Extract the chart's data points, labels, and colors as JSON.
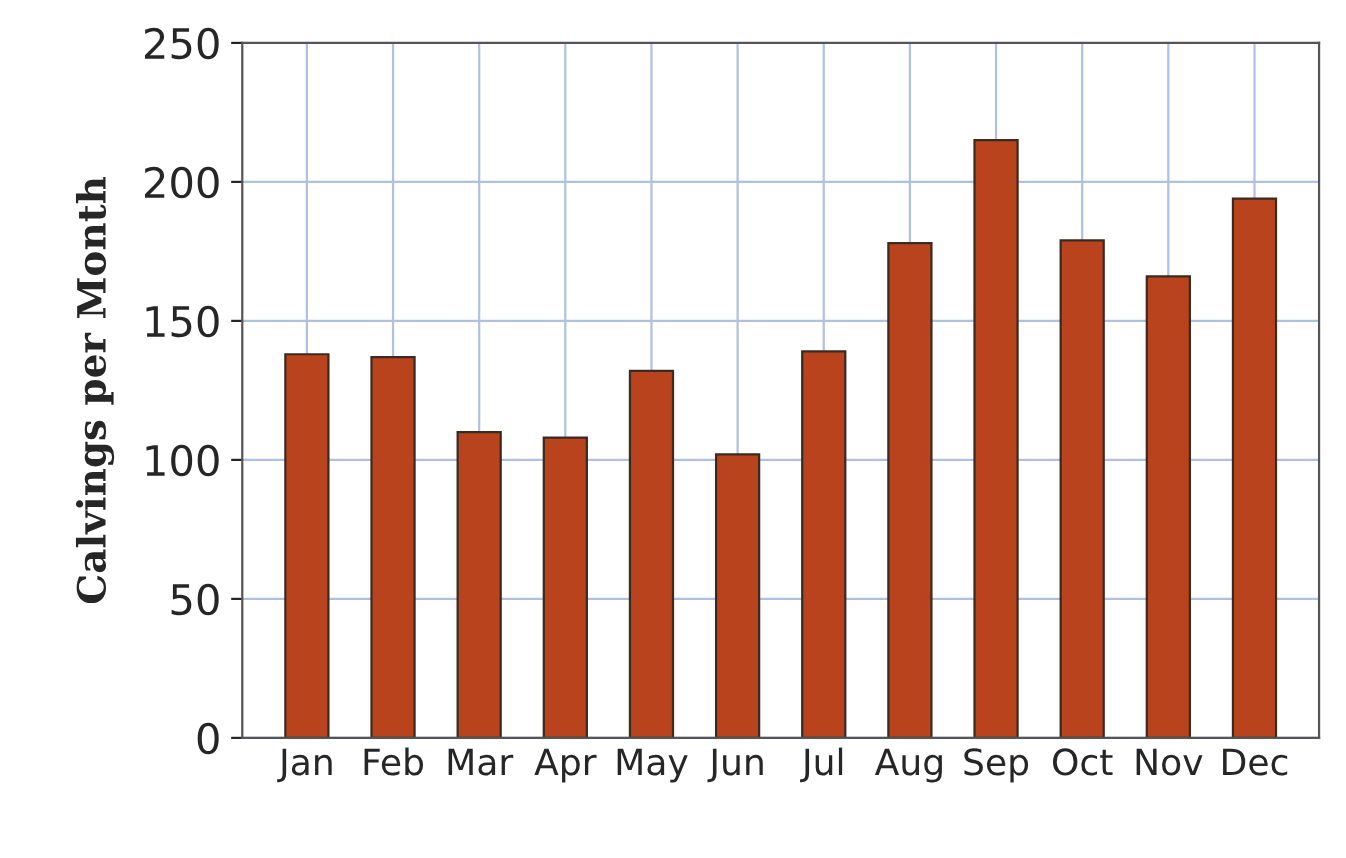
{
  "chart_data": {
    "type": "bar",
    "ylabel": "Calvings per Month",
    "categories": [
      "Jan",
      "Feb",
      "Mar",
      "Apr",
      "May",
      "Jun",
      "Jul",
      "Aug",
      "Sep",
      "Oct",
      "Nov",
      "Dec"
    ],
    "values": [
      138,
      137,
      110,
      108,
      132,
      102,
      139,
      178,
      215,
      179,
      166,
      194
    ],
    "color": "#b8431c",
    "ylim": [
      0,
      250
    ],
    "yticks": [
      0,
      50,
      100,
      150,
      200,
      250
    ],
    "grid": true
  }
}
